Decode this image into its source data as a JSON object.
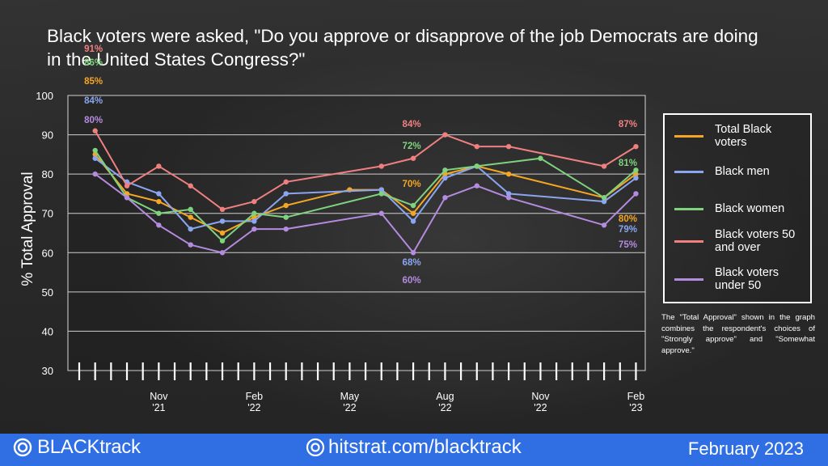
{
  "title": "Black voters were asked, \"Do you approve or disapprove of the job Democrats are doing in the United States Congress?\"",
  "colors": {
    "total": "#f5a623",
    "men": "#8aa6f0",
    "women": "#7fd37f",
    "over50": "#f08080",
    "under50": "#b58be0"
  },
  "legend": [
    {
      "key": "total",
      "label": "Total Black voters"
    },
    {
      "key": "men",
      "label": "Black men"
    },
    {
      "key": "women",
      "label": "Black women"
    },
    {
      "key": "over50",
      "label": "Black voters 50 and over"
    },
    {
      "key": "under50",
      "label": "Black voters under 50"
    }
  ],
  "note": "The \"Total Approval\" shown in the graph combines the respondent's choices of \"Strongly approve\" and \"Somewhat approve.\"",
  "footer": {
    "brand": "BLACKtrack",
    "website": "hitstrat.com/blacktrack",
    "date": "February 2023"
  },
  "chart_data": {
    "type": "line",
    "ylabel": "% Total Approval",
    "ylim": [
      30,
      100
    ],
    "yticks": [
      30,
      40,
      50,
      60,
      70,
      80,
      90,
      100
    ],
    "grid": true,
    "legend_position": "right",
    "x_tick_labels": [
      {
        "month": "Nov",
        "year": "'21",
        "index": 5
      },
      {
        "month": "Feb",
        "year": "'22",
        "index": 11
      },
      {
        "month": "May",
        "year": "'22",
        "index": 17
      },
      {
        "month": "Aug",
        "year": "'22",
        "index": 23
      },
      {
        "month": "Nov",
        "year": "'22",
        "index": 29
      },
      {
        "month": "Feb",
        "year": "'23",
        "index": 35
      }
    ],
    "series": [
      {
        "key": "total",
        "name": "Total Black voters",
        "points": [
          [
            1,
            85
          ],
          [
            3,
            75
          ],
          [
            5,
            73
          ],
          [
            7,
            69
          ],
          [
            9,
            65
          ],
          [
            11,
            69
          ],
          [
            13,
            72
          ],
          [
            17,
            76
          ],
          [
            19,
            76
          ],
          [
            21,
            70
          ],
          [
            23,
            80
          ],
          [
            25,
            82
          ],
          [
            27,
            80
          ],
          [
            33,
            74
          ],
          [
            35,
            80
          ]
        ]
      },
      {
        "key": "men",
        "name": "Black men",
        "points": [
          [
            1,
            84
          ],
          [
            3,
            78
          ],
          [
            5,
            75
          ],
          [
            7,
            66
          ],
          [
            9,
            68
          ],
          [
            11,
            68
          ],
          [
            13,
            75
          ],
          [
            19,
            76
          ],
          [
            21,
            68
          ],
          [
            23,
            79
          ],
          [
            25,
            82
          ],
          [
            27,
            75
          ],
          [
            33,
            73
          ],
          [
            35,
            79
          ]
        ]
      },
      {
        "key": "women",
        "name": "Black women",
        "points": [
          [
            1,
            86
          ],
          [
            3,
            74
          ],
          [
            5,
            70
          ],
          [
            7,
            71
          ],
          [
            9,
            63
          ],
          [
            11,
            70
          ],
          [
            13,
            69
          ],
          [
            19,
            75
          ],
          [
            21,
            72
          ],
          [
            23,
            81
          ],
          [
            25,
            82
          ],
          [
            29,
            84
          ],
          [
            33,
            74
          ],
          [
            35,
            81
          ]
        ]
      },
      {
        "key": "over50",
        "name": "Black voters 50 and over",
        "points": [
          [
            1,
            91
          ],
          [
            3,
            77
          ],
          [
            5,
            82
          ],
          [
            7,
            77
          ],
          [
            9,
            71
          ],
          [
            11,
            73
          ],
          [
            13,
            78
          ],
          [
            19,
            82
          ],
          [
            21,
            84
          ],
          [
            23,
            90
          ],
          [
            25,
            87
          ],
          [
            27,
            87
          ],
          [
            33,
            82
          ],
          [
            35,
            87
          ]
        ]
      },
      {
        "key": "under50",
        "name": "Black voters under 50",
        "points": [
          [
            1,
            80
          ],
          [
            3,
            74
          ],
          [
            5,
            67
          ],
          [
            7,
            62
          ],
          [
            9,
            60
          ],
          [
            11,
            66
          ],
          [
            13,
            66
          ],
          [
            19,
            70
          ],
          [
            21,
            60
          ],
          [
            23,
            74
          ],
          [
            25,
            77
          ],
          [
            27,
            74
          ],
          [
            33,
            67
          ],
          [
            35,
            75
          ]
        ]
      }
    ],
    "data_labels": [
      {
        "key": "over50",
        "text": "91%",
        "index": 1,
        "value": 91
      },
      {
        "key": "women",
        "text": "86%",
        "index": 1,
        "value": 86
      },
      {
        "key": "total",
        "text": "85%",
        "index": 1,
        "value": 85
      },
      {
        "key": "men",
        "text": "84%",
        "index": 1,
        "value": 84
      },
      {
        "key": "under50",
        "text": "80%",
        "index": 1,
        "value": 80
      },
      {
        "key": "over50",
        "text": "84%",
        "index": 21,
        "value": 84
      },
      {
        "key": "women",
        "text": "72%",
        "index": 21,
        "value": 72
      },
      {
        "key": "total",
        "text": "70%",
        "index": 21,
        "value": 70
      },
      {
        "key": "men",
        "text": "68%",
        "index": 21,
        "value": 68
      },
      {
        "key": "under50",
        "text": "60%",
        "index": 21,
        "value": 60
      },
      {
        "key": "over50",
        "text": "87%",
        "index": 35,
        "value": 87
      },
      {
        "key": "women",
        "text": "81%",
        "index": 35,
        "value": 81
      },
      {
        "key": "total",
        "text": "80%",
        "index": 35,
        "value": 80
      },
      {
        "key": "men",
        "text": "79%",
        "index": 35,
        "value": 79
      },
      {
        "key": "under50",
        "text": "75%",
        "index": 35,
        "value": 75
      }
    ]
  }
}
